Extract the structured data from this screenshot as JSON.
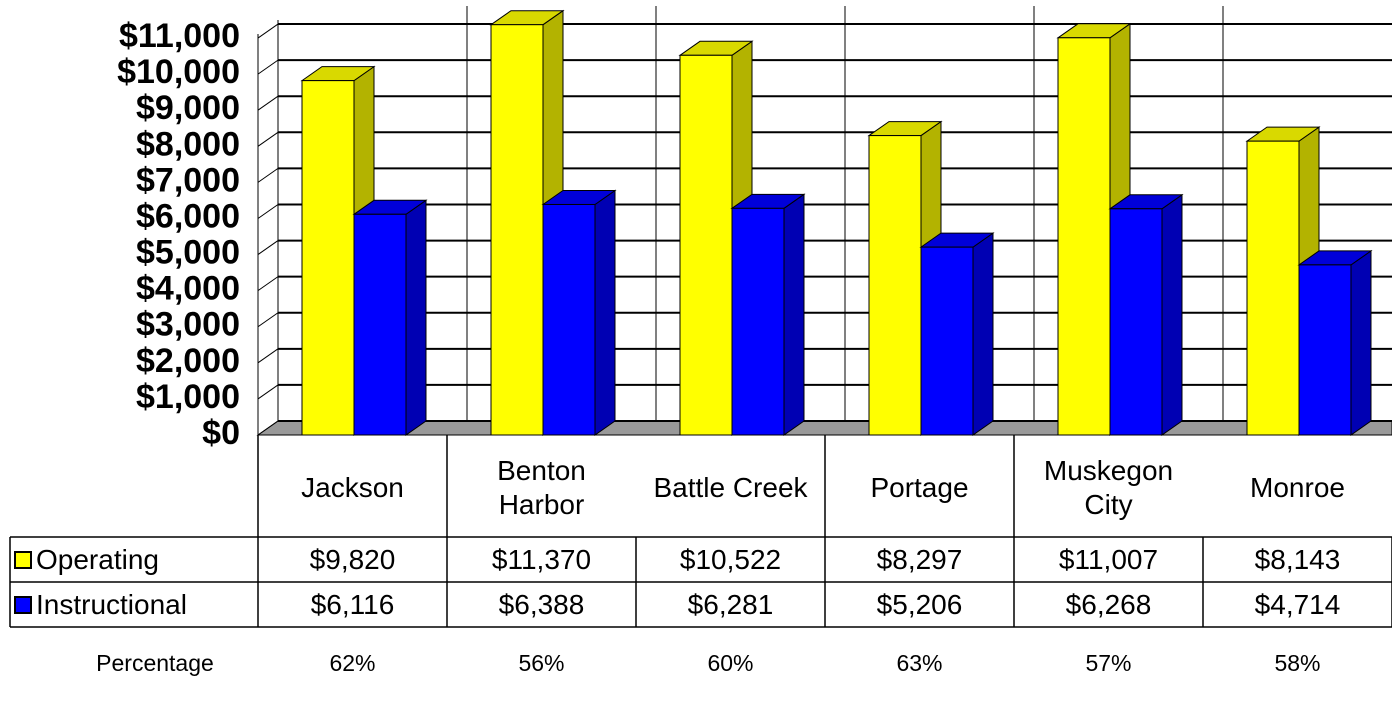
{
  "chart_data": {
    "type": "bar3d",
    "categories": [
      "Jackson",
      "Benton Harbor",
      "Battle Creek",
      "Portage",
      "Muskegon City",
      "Monroe"
    ],
    "series": [
      {
        "name": "Operating",
        "color": "#ffff00",
        "values": [
          9820,
          11370,
          10522,
          8297,
          11007,
          8143
        ],
        "value_labels": [
          "$9,820",
          "$11,370",
          "$10,522",
          "$8,297",
          "$11,007",
          "$8,143"
        ]
      },
      {
        "name": "Instructional",
        "color": "#0000ff",
        "values": [
          6116,
          6388,
          6281,
          5206,
          6268,
          4714
        ],
        "value_labels": [
          "$6,116",
          "$6,388",
          "$6,281",
          "$5,206",
          "$6,268",
          "$4,714"
        ]
      }
    ],
    "extra_rows": [
      {
        "name": "Percentage",
        "values": [
          62,
          56,
          60,
          63,
          57,
          58
        ],
        "value_labels": [
          "62%",
          "56%",
          "60%",
          "63%",
          "57%",
          "58%"
        ]
      }
    ],
    "ylim": [
      0,
      11500
    ],
    "yticks": [
      {
        "value": 0,
        "label": "$0"
      },
      {
        "value": 1000,
        "label": "$1,000"
      },
      {
        "value": 2000,
        "label": "$2,000"
      },
      {
        "value": 3000,
        "label": "$3,000"
      },
      {
        "value": 4000,
        "label": "$4,000"
      },
      {
        "value": 5000,
        "label": "$5,000"
      },
      {
        "value": 6000,
        "label": "$6,000"
      },
      {
        "value": 7000,
        "label": "$7,000"
      },
      {
        "value": 8000,
        "label": "$8,000"
      },
      {
        "value": 9000,
        "label": "$9,000"
      },
      {
        "value": 10000,
        "label": "$10,000"
      },
      {
        "value": 11000,
        "label": "$11,000"
      }
    ],
    "grid": true
  }
}
